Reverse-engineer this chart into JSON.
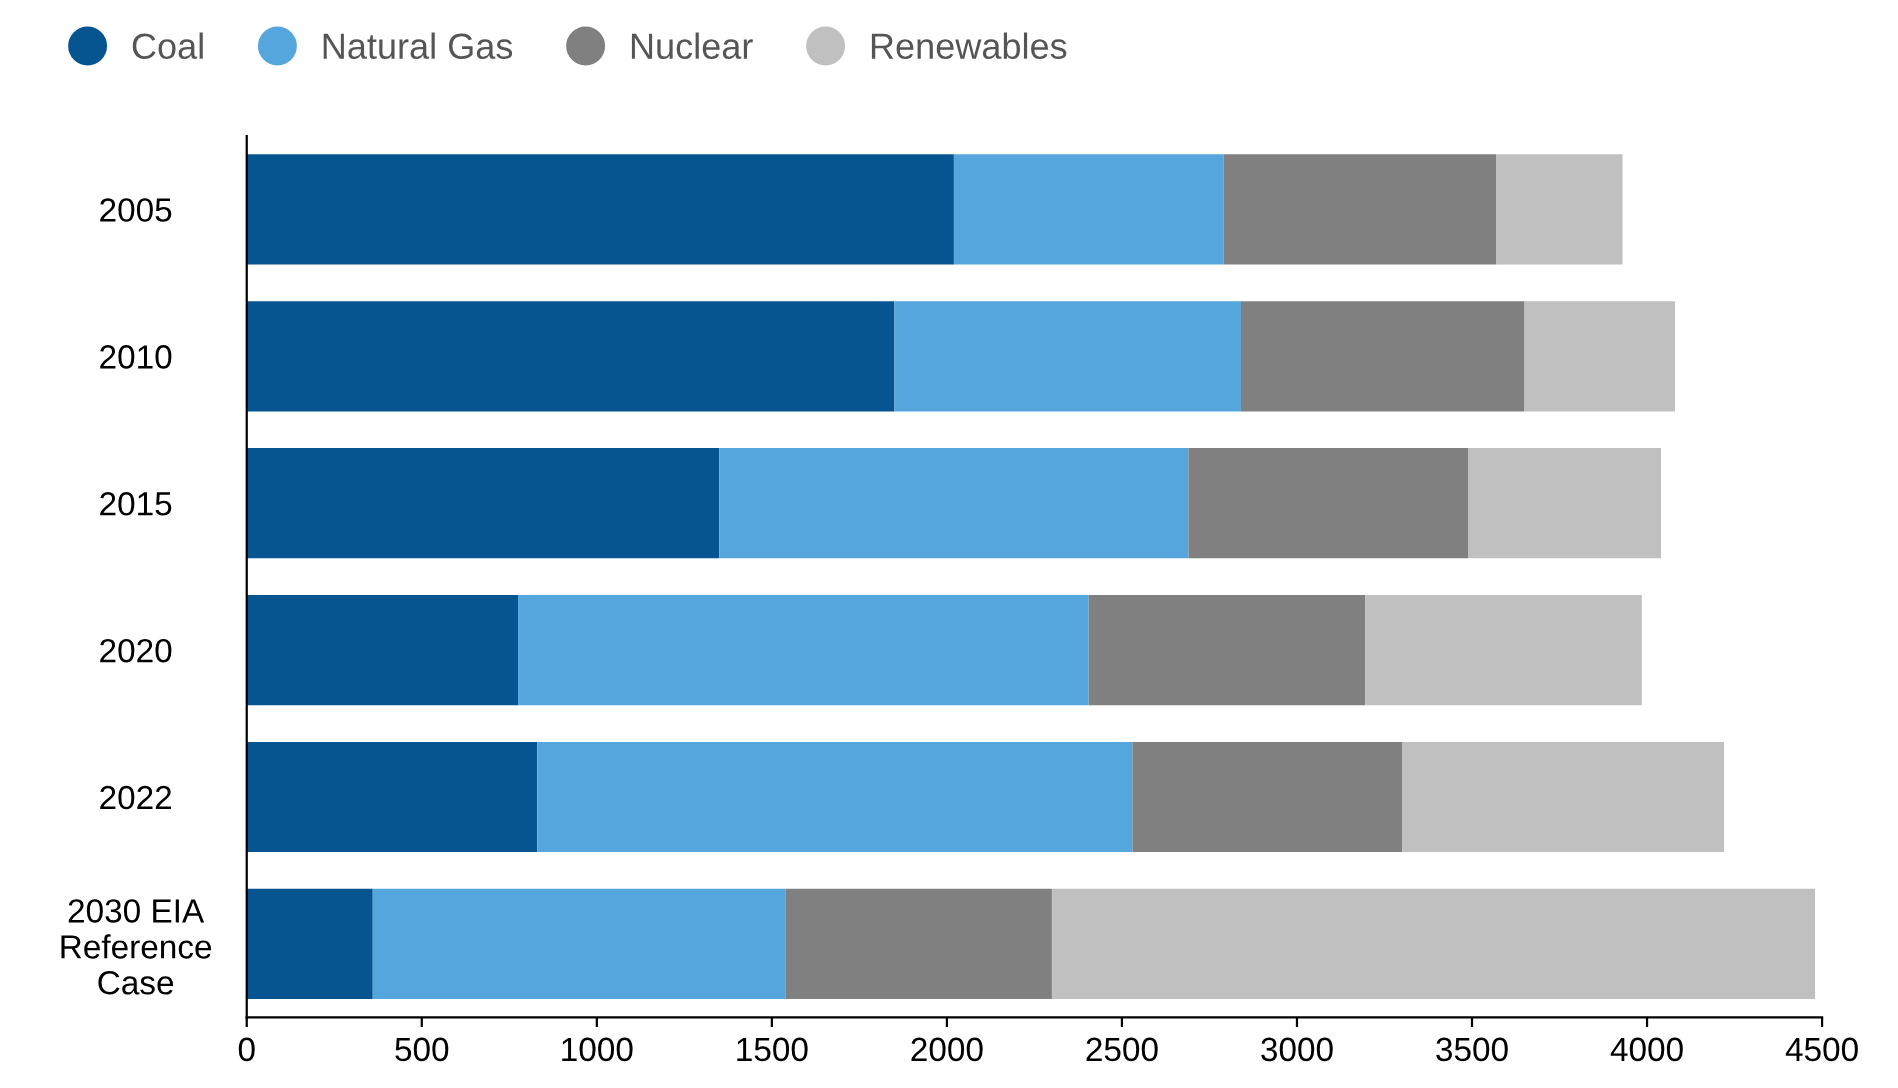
{
  "chart_data": {
    "type": "bar",
    "orientation": "horizontal",
    "stacked": true,
    "categories": [
      "2005",
      "2010",
      "2015",
      "2020",
      "2022",
      "2030 EIA\nReference\nCase"
    ],
    "series": [
      {
        "name": "Coal",
        "color": "#065590",
        "values": [
          2020,
          1850,
          1350,
          775,
          830,
          360
        ]
      },
      {
        "name": "Natural Gas",
        "color": "#55a6dd",
        "values": [
          770,
          990,
          1340,
          1630,
          1700,
          1180
        ]
      },
      {
        "name": "Nuclear",
        "color": "#808080",
        "values": [
          780,
          810,
          800,
          790,
          770,
          760
        ]
      },
      {
        "name": "Renewables",
        "color": "#c0c0c0",
        "values": [
          360,
          430,
          550,
          790,
          920,
          2180
        ]
      }
    ],
    "xlim": [
      0,
      4500
    ],
    "xticks": [
      0,
      500,
      1000,
      1500,
      2000,
      2500,
      3000,
      3500,
      4000,
      4500
    ],
    "legend": "top left",
    "grid": false
  }
}
